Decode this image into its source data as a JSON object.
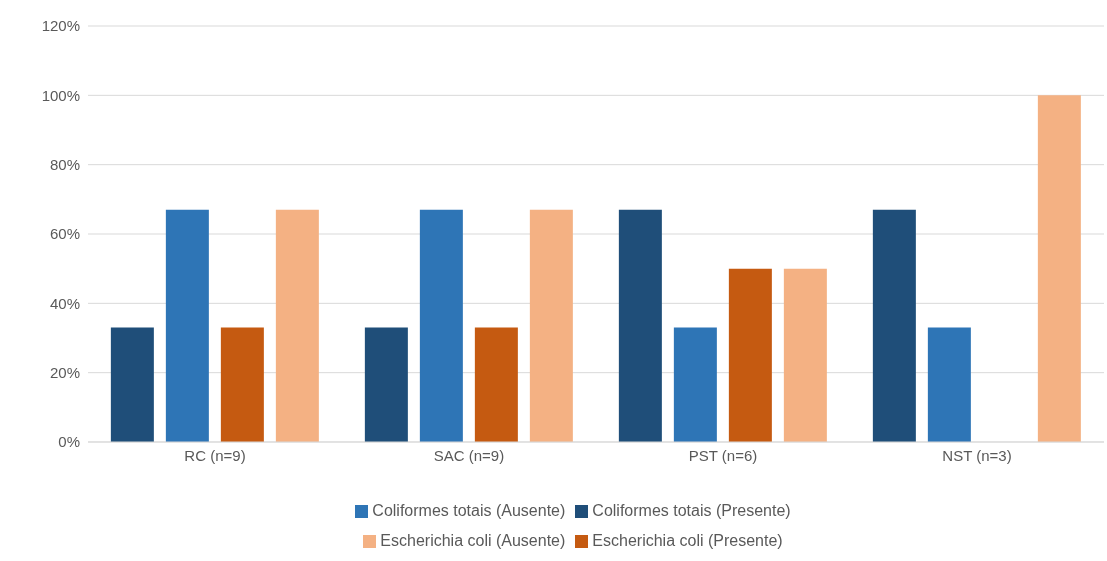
{
  "chart_data": {
    "type": "bar",
    "categories": [
      "RC (n=9)",
      "SAC (n=9)",
      "PST (n=6)",
      "NST (n=3)"
    ],
    "series": [
      {
        "name": "Coliformes totais (Presente)",
        "color": "#1f4e79",
        "values": [
          33,
          33,
          67,
          67
        ]
      },
      {
        "name": "Coliformes totais (Ausente)",
        "color": "#2e75b6",
        "values": [
          67,
          67,
          33,
          33
        ]
      },
      {
        "name": "Escherichia coli (Presente)",
        "color": "#c55a11",
        "values": [
          33,
          33,
          50,
          0
        ]
      },
      {
        "name": "Escherichia coli (Ausente)",
        "color": "#f4b183",
        "values": [
          67,
          67,
          50,
          100
        ]
      }
    ],
    "ylim": [
      0,
      120
    ],
    "yticks": [
      {
        "value": 0,
        "label": "0%"
      },
      {
        "value": 20,
        "label": "20%"
      },
      {
        "value": 40,
        "label": "40%"
      },
      {
        "value": 60,
        "label": "60%"
      },
      {
        "value": 80,
        "label": "80%"
      },
      {
        "value": 100,
        "label": "100%"
      },
      {
        "value": 120,
        "label": "120%"
      }
    ],
    "grid": "y",
    "legend": "bottom"
  }
}
